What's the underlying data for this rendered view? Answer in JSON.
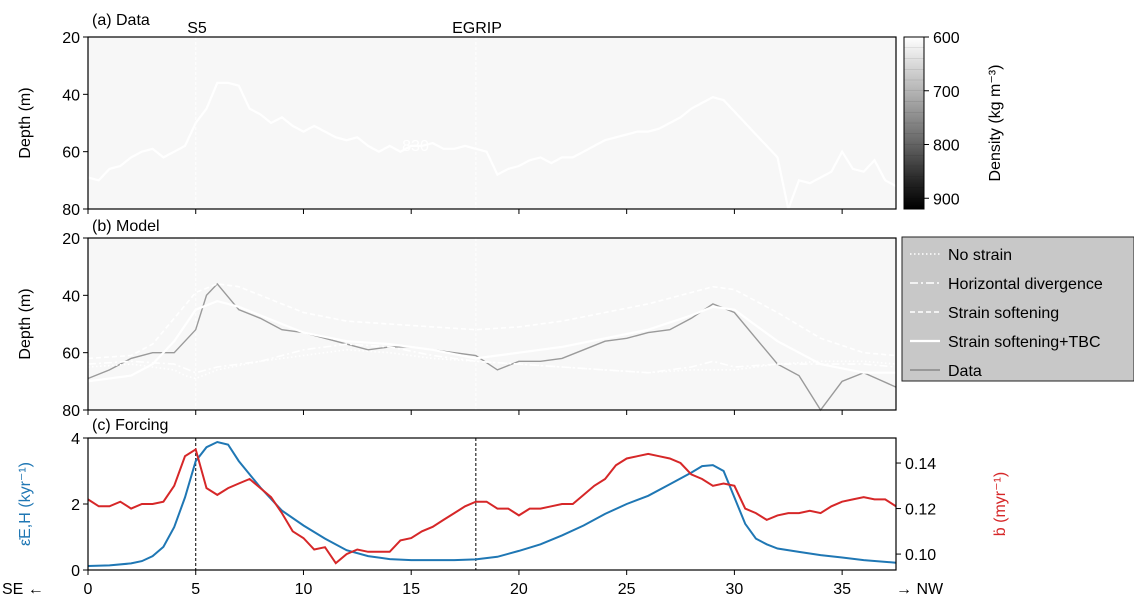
{
  "figure": {
    "site_labels": [
      "S5",
      "EGRIP"
    ],
    "direction_left": "SE ←",
    "direction_right": "→ NW",
    "xticks": [
      "0",
      "5",
      "10",
      "15",
      "20",
      "25",
      "30",
      "35"
    ]
  },
  "panel_a": {
    "title": "(a) Data",
    "ylabel": "Depth (m)",
    "yticks": [
      "20",
      "40",
      "60",
      "80"
    ],
    "contour_label": "830",
    "colorbar_label": "Density (kg m⁻³)",
    "colorbar_ticks": [
      "600",
      "700",
      "800",
      "900"
    ]
  },
  "panel_b": {
    "title": "(b) Model",
    "ylabel": "Depth (m)",
    "yticks": [
      "20",
      "40",
      "60",
      "80"
    ],
    "legend": [
      "No strain",
      "Horizontal divergence",
      "Strain softening",
      "Strain softening+TBC",
      "Data"
    ]
  },
  "panel_c": {
    "title": "(c) Forcing",
    "ylabel_left": "ε̇E,H (kyr⁻¹)",
    "ylabel_right": "ḃ (myr⁻¹)",
    "yticks_left": [
      "0",
      "2",
      "4"
    ],
    "yticks_right": [
      "0.10",
      "0.12",
      "0.14"
    ],
    "colors": {
      "left": "#1f77b4",
      "right": "#d62728"
    }
  },
  "chart_data": [
    {
      "type": "heatmap",
      "title": "(a) Data",
      "xlabel": "",
      "ylabel": "Depth (m)",
      "xlim": [
        0,
        37.5
      ],
      "ylim": [
        80,
        20
      ],
      "colorbar": {
        "label": "Density (kg m⁻³)",
        "range": [
          600,
          920
        ],
        "ticks": [
          600,
          700,
          800,
          900
        ]
      },
      "vertical_lines": [
        {
          "x": 5,
          "label": "S5"
        },
        {
          "x": 18,
          "label": "EGRIP"
        }
      ],
      "contour_830": {
        "label": "830",
        "x": [
          0,
          0.5,
          1,
          1.5,
          2,
          2.5,
          3,
          3.5,
          4,
          4.5,
          5,
          5.5,
          6,
          6.5,
          7,
          7.5,
          8,
          8.5,
          9,
          9.5,
          10,
          10.5,
          11,
          11.5,
          12,
          12.5,
          13,
          13.5,
          14,
          14.5,
          15,
          15.5,
          16,
          16.5,
          17,
          17.5,
          18,
          18.5,
          19,
          19.5,
          20,
          20.5,
          21,
          21.5,
          22,
          22.5,
          23,
          23.5,
          24,
          24.5,
          25,
          25.5,
          26,
          26.5,
          27,
          27.5,
          28,
          28.5,
          29,
          29.5,
          30,
          30.5,
          31,
          31.5,
          32,
          32.5,
          33,
          33.5,
          34,
          34.5,
          35,
          35.5,
          36,
          36.5,
          37,
          37.5
        ],
        "y": [
          69,
          70,
          66,
          65,
          62,
          60,
          59,
          62,
          60,
          58,
          50,
          45,
          36,
          36,
          37,
          45,
          47,
          50,
          48,
          51,
          53,
          51,
          53,
          55,
          56,
          55,
          58,
          60,
          58,
          60,
          58,
          58,
          57,
          59,
          59,
          58,
          59,
          60,
          68,
          66,
          65,
          63,
          62,
          64,
          62,
          62,
          60,
          58,
          56,
          55,
          54,
          53,
          53,
          52,
          50,
          48,
          45,
          43,
          41,
          42,
          46,
          50,
          54,
          58,
          62,
          80,
          70,
          71,
          69,
          67,
          60,
          66,
          67,
          63,
          70,
          72
        ]
      }
    },
    {
      "type": "line",
      "title": "(b) Model",
      "xlabel": "",
      "ylabel": "Depth (m)",
      "xlim": [
        0,
        37.5
      ],
      "ylim": [
        80,
        20
      ],
      "series": [
        {
          "name": "No strain",
          "x": [
            0,
            2,
            3,
            4,
            4.5,
            5,
            6,
            8,
            10,
            12,
            14,
            16,
            18,
            20,
            22,
            24,
            26,
            28,
            30,
            32,
            34,
            36,
            37.5
          ],
          "y": [
            65,
            64,
            65,
            66,
            68,
            69,
            66,
            63,
            61,
            59,
            60,
            62,
            63,
            64,
            65,
            66,
            67,
            66,
            66,
            64,
            63,
            63,
            64
          ]
        },
        {
          "name": "Horizontal divergence",
          "x": [
            0,
            2,
            4,
            5,
            6,
            8,
            10,
            12,
            14,
            16,
            18,
            20,
            22,
            24,
            26,
            28,
            29,
            30,
            32,
            34,
            36,
            37.5
          ],
          "y": [
            64,
            63,
            64,
            67,
            65,
            63,
            59,
            57,
            58,
            61,
            63,
            64,
            65,
            66,
            67,
            65,
            63,
            65,
            64,
            64,
            64,
            65
          ]
        },
        {
          "name": "Strain softening",
          "x": [
            0,
            2,
            3,
            4,
            5,
            6,
            7,
            8,
            10,
            12,
            14,
            16,
            18,
            20,
            22,
            24,
            26,
            28,
            29,
            30,
            32,
            34,
            36,
            37.5
          ],
          "y": [
            62,
            61,
            57,
            48,
            39,
            36,
            37,
            40,
            46,
            49,
            50,
            51,
            52,
            51,
            49,
            46,
            43,
            39,
            37,
            38,
            46,
            55,
            60,
            61
          ]
        },
        {
          "name": "Strain softening+TBC",
          "x": [
            0,
            2,
            3,
            4,
            5,
            6,
            7,
            8,
            10,
            12,
            14,
            16,
            18,
            20,
            22,
            24,
            26,
            28,
            29,
            30,
            32,
            34,
            36,
            37.5
          ],
          "y": [
            70,
            68,
            64,
            56,
            45,
            42,
            44,
            47,
            53,
            56,
            57,
            59,
            62,
            60,
            58,
            55,
            52,
            47,
            44,
            45,
            56,
            64,
            67,
            67
          ]
        },
        {
          "name": "Data",
          "x": [
            0,
            1,
            2,
            3,
            4,
            5,
            5.5,
            6,
            7,
            8,
            9,
            10,
            11,
            12,
            13,
            14,
            15,
            16,
            17,
            18,
            19,
            20,
            21,
            22,
            23,
            24,
            25,
            26,
            27,
            28,
            29,
            30,
            31,
            32,
            33,
            34,
            35,
            36,
            37.5
          ],
          "y": [
            69,
            66,
            62,
            60,
            60,
            52,
            40,
            36,
            45,
            48,
            52,
            53,
            55,
            57,
            59,
            58,
            58,
            59,
            60,
            61,
            66,
            63,
            63,
            62,
            59,
            56,
            55,
            53,
            52,
            48,
            43,
            46,
            55,
            64,
            68,
            80,
            70,
            67,
            72
          ]
        }
      ]
    },
    {
      "type": "line",
      "title": "(c) Forcing",
      "xlabel": "",
      "xlim": [
        0,
        37.5
      ],
      "xticks": [
        0,
        5,
        10,
        15,
        20,
        25,
        30,
        35
      ],
      "series": [
        {
          "name": "ε̇E,H (kyr⁻¹)",
          "axis": "left",
          "ylim": [
            0,
            4
          ],
          "x": [
            0,
            1,
            2,
            2.5,
            3,
            3.5,
            4,
            4.5,
            5,
            5.5,
            6,
            6.5,
            7,
            8,
            9,
            10,
            11,
            12,
            13,
            14,
            15,
            16,
            17,
            18,
            19,
            20,
            21,
            22,
            23,
            24,
            25,
            26,
            27,
            28,
            28.5,
            29,
            29.5,
            30,
            30.5,
            31,
            31.5,
            32,
            33,
            34,
            35,
            36,
            37.5
          ],
          "y": [
            0.12,
            0.14,
            0.2,
            0.27,
            0.42,
            0.7,
            1.3,
            2.2,
            3.3,
            3.72,
            3.88,
            3.8,
            3.3,
            2.5,
            1.8,
            1.35,
            0.95,
            0.6,
            0.42,
            0.33,
            0.3,
            0.3,
            0.3,
            0.32,
            0.4,
            0.58,
            0.78,
            1.05,
            1.35,
            1.7,
            2.0,
            2.25,
            2.6,
            2.95,
            3.15,
            3.18,
            3.0,
            2.2,
            1.4,
            0.95,
            0.78,
            0.65,
            0.55,
            0.45,
            0.38,
            0.3,
            0.22
          ]
        },
        {
          "name": "ḃ (myr⁻¹)",
          "axis": "right",
          "ylim": [
            0.093,
            0.151
          ],
          "x": [
            0,
            0.5,
            1,
            1.5,
            2,
            2.5,
            3,
            3.5,
            4,
            4.5,
            5,
            5.5,
            6,
            6.5,
            7,
            7.5,
            8,
            8.5,
            9,
            9.5,
            10,
            10.5,
            11,
            11.5,
            12,
            12.5,
            13,
            13.5,
            14,
            14.5,
            15,
            15.5,
            16,
            16.5,
            17,
            17.5,
            18,
            18.5,
            19,
            19.5,
            20,
            20.5,
            21,
            21.5,
            22,
            22.5,
            23,
            23.5,
            24,
            24.5,
            25,
            25.5,
            26,
            26.5,
            27,
            27.5,
            28,
            28.5,
            29,
            29.5,
            30,
            30.5,
            31,
            31.5,
            32,
            32.5,
            33,
            33.5,
            34,
            34.5,
            35,
            35.5,
            36,
            36.5,
            37,
            37.5
          ],
          "y": [
            0.124,
            0.121,
            0.121,
            0.123,
            0.12,
            0.122,
            0.122,
            0.123,
            0.13,
            0.143,
            0.146,
            0.129,
            0.126,
            0.129,
            0.131,
            0.133,
            0.129,
            0.125,
            0.118,
            0.11,
            0.107,
            0.102,
            0.103,
            0.096,
            0.1,
            0.102,
            0.101,
            0.101,
            0.101,
            0.106,
            0.107,
            0.11,
            0.112,
            0.115,
            0.118,
            0.121,
            0.123,
            0.123,
            0.12,
            0.12,
            0.117,
            0.12,
            0.12,
            0.121,
            0.122,
            0.122,
            0.126,
            0.13,
            0.133,
            0.139,
            0.142,
            0.143,
            0.144,
            0.143,
            0.142,
            0.14,
            0.135,
            0.133,
            0.13,
            0.131,
            0.13,
            0.12,
            0.118,
            0.115,
            0.117,
            0.118,
            0.118,
            0.119,
            0.118,
            0.121,
            0.123,
            0.124,
            0.125,
            0.124,
            0.124,
            0.121
          ]
        }
      ]
    }
  ]
}
